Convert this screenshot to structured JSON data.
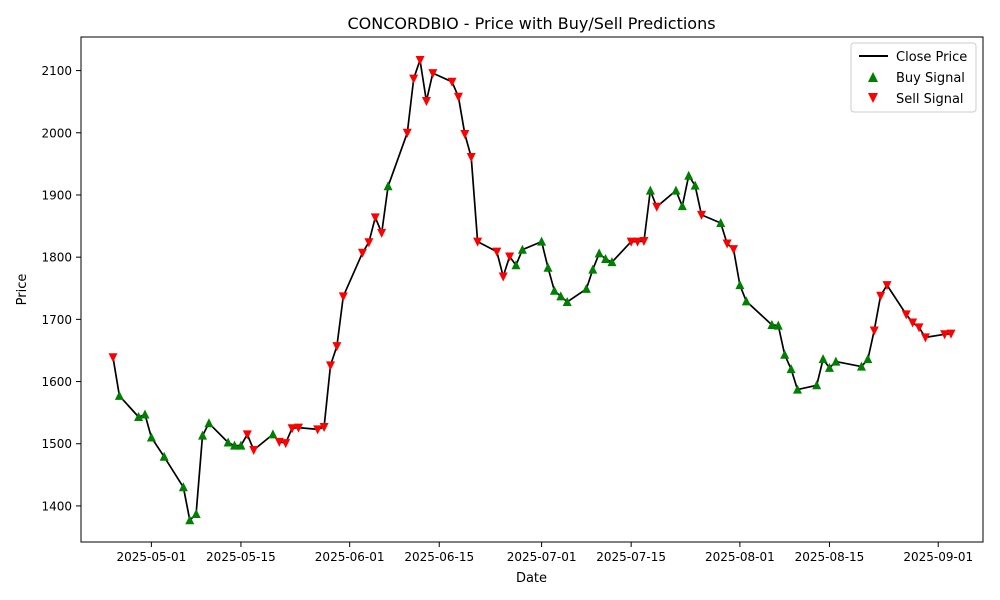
{
  "chart_data": {
    "type": "line",
    "title": "CONCORDBIO - Price with Buy/Sell Predictions",
    "xlabel": "Date",
    "ylabel": "Price",
    "xlim": [
      "2025-04-20",
      "2025-09-08"
    ],
    "ylim": [
      1342,
      2154
    ],
    "x_ticks": [
      "2025-05-01",
      "2025-05-15",
      "2025-06-01",
      "2025-06-15",
      "2025-07-01",
      "2025-07-15",
      "2025-08-01",
      "2025-08-15",
      "2025-09-01"
    ],
    "y_ticks": [
      1400,
      1500,
      1600,
      1700,
      1800,
      1900,
      2000,
      2100
    ],
    "grid": false,
    "legend_position": "top-right",
    "legend": [
      "Close Price",
      "Buy Signal",
      "Sell Signal"
    ],
    "colors": {
      "line": "#000000",
      "buy": "#008000",
      "sell": "#ff0000"
    },
    "series": [
      {
        "name": "Close Price",
        "points": [
          [
            "2025-04-25",
            1639,
            "sell"
          ],
          [
            "2025-04-26",
            1577,
            "buy"
          ],
          [
            "2025-04-29",
            1543,
            "buy"
          ],
          [
            "2025-04-30",
            1547,
            "buy"
          ],
          [
            "2025-05-01",
            1510,
            "buy"
          ],
          [
            "2025-05-03",
            1479,
            "buy"
          ],
          [
            "2025-05-06",
            1430,
            "buy"
          ],
          [
            "2025-05-07",
            1377,
            "buy"
          ],
          [
            "2025-05-08",
            1387,
            "buy"
          ],
          [
            "2025-05-09",
            1513,
            "buy"
          ],
          [
            "2025-05-10",
            1533,
            "buy"
          ],
          [
            "2025-05-13",
            1502,
            "buy"
          ],
          [
            "2025-05-14",
            1497,
            "buy"
          ],
          [
            "2025-05-15",
            1497,
            "buy"
          ],
          [
            "2025-05-16",
            1515,
            "sell"
          ],
          [
            "2025-05-17",
            1490,
            "sell"
          ],
          [
            "2025-05-20",
            1515,
            "buy"
          ],
          [
            "2025-05-21",
            1503,
            "sell"
          ],
          [
            "2025-05-22",
            1501,
            "sell"
          ],
          [
            "2025-05-23",
            1525,
            "sell"
          ],
          [
            "2025-05-24",
            1526,
            "sell"
          ],
          [
            "2025-05-27",
            1523,
            "sell"
          ],
          [
            "2025-05-28",
            1527,
            "sell"
          ],
          [
            "2025-05-29",
            1626,
            "sell"
          ],
          [
            "2025-05-30",
            1657,
            "sell"
          ],
          [
            "2025-05-31",
            1737,
            "sell"
          ],
          [
            "2025-06-03",
            1807,
            "sell"
          ],
          [
            "2025-06-04",
            1824,
            "sell"
          ],
          [
            "2025-06-05",
            1864,
            "sell"
          ],
          [
            "2025-06-06",
            1839,
            "sell"
          ],
          [
            "2025-06-07",
            1914,
            "buy"
          ],
          [
            "2025-06-10",
            2000,
            "sell"
          ],
          [
            "2025-06-11",
            2087,
            "sell"
          ],
          [
            "2025-06-12",
            2117,
            "sell"
          ],
          [
            "2025-06-13",
            2051,
            "sell"
          ],
          [
            "2025-06-14",
            2096,
            "sell"
          ],
          [
            "2025-06-17",
            2082,
            "sell"
          ],
          [
            "2025-06-18",
            2058,
            "sell"
          ],
          [
            "2025-06-19",
            1998,
            "sell"
          ],
          [
            "2025-06-20",
            1961,
            "sell"
          ],
          [
            "2025-06-21",
            1825,
            "sell"
          ],
          [
            "2025-06-24",
            1809,
            "sell"
          ],
          [
            "2025-06-25",
            1769,
            "sell"
          ],
          [
            "2025-06-26",
            1801,
            "sell"
          ],
          [
            "2025-06-27",
            1787,
            "buy"
          ],
          [
            "2025-06-28",
            1812,
            "buy"
          ],
          [
            "2025-07-01",
            1825,
            "buy"
          ],
          [
            "2025-07-02",
            1783,
            "buy"
          ],
          [
            "2025-07-03",
            1746,
            "buy"
          ],
          [
            "2025-07-04",
            1737,
            "buy"
          ],
          [
            "2025-07-05",
            1728,
            "buy"
          ],
          [
            "2025-07-08",
            1749,
            "buy"
          ],
          [
            "2025-07-09",
            1780,
            "buy"
          ],
          [
            "2025-07-10",
            1806,
            "buy"
          ],
          [
            "2025-07-11",
            1797,
            "buy"
          ],
          [
            "2025-07-12",
            1792,
            "buy"
          ],
          [
            "2025-07-15",
            1825,
            "sell"
          ],
          [
            "2025-07-16",
            1825,
            "sell"
          ],
          [
            "2025-07-17",
            1826,
            "sell"
          ],
          [
            "2025-07-18",
            1907,
            "buy"
          ],
          [
            "2025-07-19",
            1881,
            "sell"
          ],
          [
            "2025-07-22",
            1907,
            "buy"
          ],
          [
            "2025-07-23",
            1882,
            "buy"
          ],
          [
            "2025-07-24",
            1931,
            "buy"
          ],
          [
            "2025-07-25",
            1915,
            "buy"
          ],
          [
            "2025-07-26",
            1868,
            "sell"
          ],
          [
            "2025-07-29",
            1855,
            "buy"
          ],
          [
            "2025-07-30",
            1822,
            "sell"
          ],
          [
            "2025-07-31",
            1813,
            "sell"
          ],
          [
            "2025-08-01",
            1755,
            "buy"
          ],
          [
            "2025-08-02",
            1729,
            "buy"
          ],
          [
            "2025-08-06",
            1691,
            "buy"
          ],
          [
            "2025-08-07",
            1690,
            "buy"
          ],
          [
            "2025-08-08",
            1643,
            "buy"
          ],
          [
            "2025-08-09",
            1620,
            "buy"
          ],
          [
            "2025-08-10",
            1587,
            "buy"
          ],
          [
            "2025-08-13",
            1594,
            "buy"
          ],
          [
            "2025-08-14",
            1636,
            "buy"
          ],
          [
            "2025-08-15",
            1622,
            "buy"
          ],
          [
            "2025-08-16",
            1632,
            "buy"
          ],
          [
            "2025-08-20",
            1624,
            "buy"
          ],
          [
            "2025-08-21",
            1636,
            "buy"
          ],
          [
            "2025-08-22",
            1682,
            "sell"
          ],
          [
            "2025-08-23",
            1738,
            "sell"
          ],
          [
            "2025-08-24",
            1755,
            "sell"
          ],
          [
            "2025-08-27",
            1708,
            "sell"
          ],
          [
            "2025-08-28",
            1695,
            "sell"
          ],
          [
            "2025-08-29",
            1687,
            "sell"
          ],
          [
            "2025-08-30",
            1671,
            "sell"
          ],
          [
            "2025-09-02",
            1676,
            "sell"
          ],
          [
            "2025-09-03",
            1677,
            "sell"
          ]
        ]
      }
    ]
  }
}
